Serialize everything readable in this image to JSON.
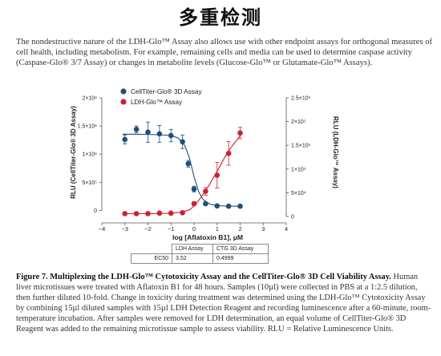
{
  "page": {
    "title": "多重检测",
    "intro": "The nondestructive nature of the LDH-Glo™ Assay also allows use with other endpoint assays for orthogonal measures of cell health, including metabolism. For example, remaining cells and media can be used to determine caspase activity (Caspase-Glo® 3/7 Assay) or changes in metabolite levels (Glucose-Glo™ or Glutamate-Glo™ Assays)."
  },
  "figure": {
    "caption_title": "Figure 7. Multiplexing the LDH-Glo™ Cytotoxicity Assay and the CellTiter-Glo® 3D Cell Viability Assay.",
    "caption_body": " Human liver microtissues were treated with Aflatoxin B1 for 48 hours. Samples (10µl) were collected in PBS at a 1:2.5 dilution, then further diluted 10-fold. Change in toxicity during treatment was determined using the LDH-Glo™ Cytotoxicity Assay by combining 15µl diluted samples with 15µl LDH Detection Reagent and recording luminescence after a 60-minute, room-temperature incubation. After samples were removed for LDH determination, an equal volume of CellTiter-Glo® 3D Reagent was added to the remaining microtissue sample to assess viability. RLU = Relative Luminescence Units.",
    "table": {
      "headers": [
        "",
        "LDH Assay",
        "CTG 3D Assay"
      ],
      "rows": [
        [
          "EC50",
          "3.52",
          "0.4999"
        ]
      ]
    }
  },
  "chart_data": {
    "type": "scatter",
    "xlabel": "log [Aflatoxin B1], µM",
    "ylabel_left": "RLU (CellTiter-Glo® 3D Assay)",
    "ylabel_right": "RLU (LDH-Glo™ Assay)",
    "xlim": [
      -4,
      4
    ],
    "xticks": [
      -4,
      -3,
      -2,
      -1,
      0,
      1,
      2,
      3,
      4
    ],
    "xtick_labels": [
      "−4",
      "−3",
      "−2",
      "−1",
      "0",
      "1",
      "2",
      "3",
      "4"
    ],
    "ylim_left": [
      -150000,
      2000000
    ],
    "yticks_left": [
      0,
      500000,
      1000000,
      1500000,
      2000000
    ],
    "ytick_labels_left": [
      "0",
      "5×10⁵",
      "1×10⁶",
      "1.5×10⁶",
      "2×10⁶"
    ],
    "ylim_right": [
      0,
      250000
    ],
    "yticks_right": [
      0,
      50000,
      100000,
      150000,
      200000,
      250000
    ],
    "ytick_labels_right": [
      "0",
      "5×10⁴",
      "1×10⁵",
      "1.5×10⁵",
      "2×10⁵",
      "2.5×10⁵"
    ],
    "legend_position": "top-left",
    "series": [
      {
        "name": "CellTiter-Glo® 3D Assay",
        "axis": "left",
        "color": "#1f4e79",
        "x": [
          -3,
          -2.5,
          -2,
          -1.5,
          -1,
          -0.5,
          -0.25,
          0,
          0.5,
          1,
          1.5,
          2
        ],
        "y": [
          1260000,
          1440000,
          1390000,
          1360000,
          1330000,
          1220000,
          830000,
          380000,
          120000,
          80000,
          75000,
          75000
        ],
        "err": [
          80000,
          60000,
          180000,
          150000,
          110000,
          120000,
          60000,
          50000,
          20000,
          15000,
          15000,
          12000
        ],
        "curve_x": [
          -3.1,
          -2.5,
          -2,
          -1.5,
          -1,
          -0.7,
          -0.4,
          -0.2,
          0,
          0.2,
          0.4,
          0.7,
          1,
          1.5,
          2.1
        ],
        "curve_y": [
          1355000,
          1354000,
          1350000,
          1345000,
          1330000,
          1290000,
          1150000,
          930000,
          600000,
          330000,
          190000,
          110000,
          85000,
          76000,
          74000
        ]
      },
      {
        "name": "LDH-Glo™ Assay",
        "axis": "right",
        "color": "#cc2131",
        "x": [
          -3,
          -2.5,
          -2,
          -1.5,
          -1,
          -0.5,
          0,
          0.5,
          1,
          1.5,
          2
        ],
        "y": [
          6000,
          6000,
          6000,
          7000,
          7000,
          8000,
          27000,
          53000,
          87000,
          133000,
          176000
        ],
        "err": [
          1500,
          1500,
          1500,
          2000,
          2000,
          2500,
          4000,
          8000,
          27000,
          25000,
          12000
        ],
        "curve_x": [
          -3.1,
          -2.5,
          -2,
          -1.5,
          -1,
          -0.5,
          -0.2,
          0,
          0.3,
          0.6,
          1,
          1.3,
          1.6,
          2,
          2.1
        ],
        "curve_y": [
          6000,
          6000,
          6100,
          6300,
          7000,
          9500,
          14000,
          22000,
          40000,
          62000,
          95000,
          122000,
          145000,
          170000,
          175000
        ]
      }
    ]
  }
}
